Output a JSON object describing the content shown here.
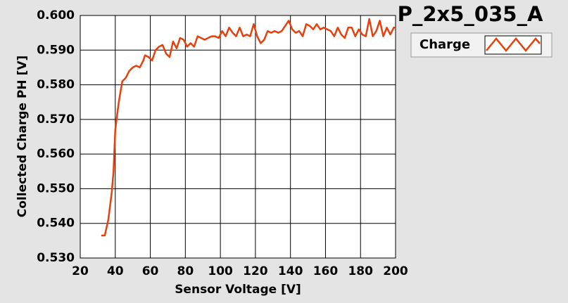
{
  "chart_data": {
    "type": "line",
    "title": "P_2x5_035_A",
    "xlabel": "Sensor Voltage [V]",
    "ylabel": "Collected Charge PH [V]",
    "x": [
      32,
      34,
      36,
      38,
      39,
      40,
      42,
      44,
      46,
      48,
      50,
      52,
      54,
      56,
      57,
      59,
      61,
      63,
      65,
      67,
      69,
      71,
      73,
      75,
      77,
      79,
      81,
      83,
      85,
      87,
      89,
      91,
      93,
      95,
      97,
      99,
      101,
      103,
      105,
      107,
      109,
      111,
      113,
      115,
      117,
      119,
      121,
      123,
      125,
      127,
      129,
      131,
      133,
      135,
      137,
      139,
      141,
      143,
      145,
      147,
      149,
      151,
      153,
      155,
      157,
      159,
      161,
      163,
      165,
      167,
      169,
      171,
      173,
      175,
      177,
      179,
      181,
      183,
      185,
      187,
      189,
      191,
      193,
      195,
      197,
      199,
      200
    ],
    "series": [
      {
        "name": "Charge",
        "color": "#e8400c",
        "values": [
          0.5365,
          0.5365,
          0.541,
          0.549,
          0.555,
          0.567,
          0.575,
          0.581,
          0.582,
          0.584,
          0.585,
          0.5855,
          0.585,
          0.587,
          0.5885,
          0.588,
          0.587,
          0.59,
          0.591,
          0.5915,
          0.589,
          0.588,
          0.5925,
          0.5905,
          0.5935,
          0.593,
          0.591,
          0.592,
          0.591,
          0.594,
          0.5935,
          0.593,
          0.5935,
          0.594,
          0.594,
          0.5935,
          0.5955,
          0.594,
          0.5965,
          0.595,
          0.594,
          0.5965,
          0.594,
          0.5945,
          0.594,
          0.5975,
          0.594,
          0.592,
          0.593,
          0.5955,
          0.595,
          0.5955,
          0.595,
          0.5955,
          0.597,
          0.5985,
          0.596,
          0.595,
          0.5955,
          0.594,
          0.5975,
          0.597,
          0.596,
          0.5975,
          0.596,
          0.5965,
          0.596,
          0.5955,
          0.594,
          0.5965,
          0.5945,
          0.5935,
          0.5965,
          0.5965,
          0.594,
          0.596,
          0.5945,
          0.594,
          0.599,
          0.594,
          0.5955,
          0.5985,
          0.594,
          0.5965,
          0.5945,
          0.5965,
          0.5965
        ]
      }
    ],
    "xlim": [
      20,
      200
    ],
    "xticks": [
      20,
      40,
      60,
      80,
      100,
      120,
      140,
      160,
      180,
      200
    ],
    "ylim": [
      0.53,
      0.6
    ],
    "yticks": [
      {
        "value": 0.53,
        "label": "0.530"
      },
      {
        "value": 0.54,
        "label": "0.540"
      },
      {
        "value": 0.55,
        "label": "0.550"
      },
      {
        "value": 0.56,
        "label": "0.560"
      },
      {
        "value": 0.57,
        "label": "0.570"
      },
      {
        "value": 0.58,
        "label": "0.580"
      },
      {
        "value": 0.59,
        "label": "0.590"
      },
      {
        "value": 0.6,
        "label": "0.600"
      }
    ],
    "grid": true
  }
}
